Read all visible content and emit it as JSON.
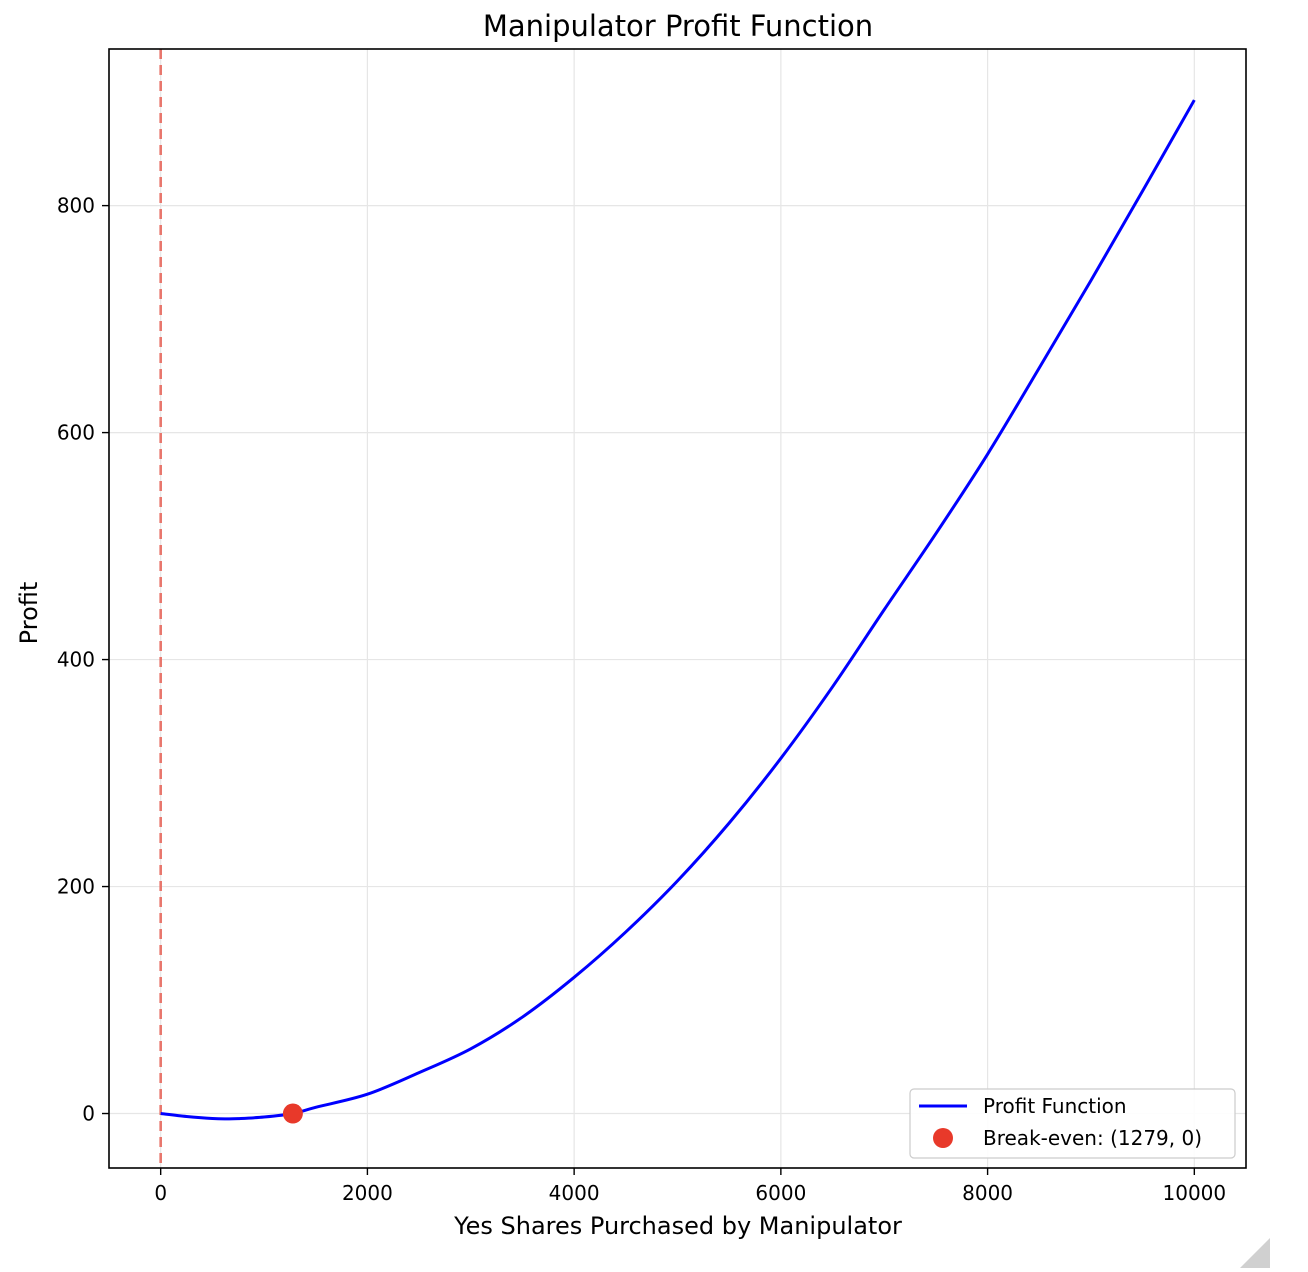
{
  "chart_data": {
    "type": "line",
    "title": "Manipulator Profit Function",
    "xlabel": "Yes Shares Purchased by Manipulator",
    "ylabel": "Profit",
    "xlim": [
      -500,
      10500
    ],
    "ylim": [
      -48,
      938
    ],
    "x_ticks": [
      0,
      2000,
      4000,
      6000,
      8000,
      10000
    ],
    "y_ticks": [
      0,
      200,
      400,
      600,
      800
    ],
    "grid": true,
    "legend_position": "lower-right",
    "colors": {
      "series": "#0000ff",
      "marker": "#e8392a",
      "vline": "#e8766c",
      "grid": "#e6e6e6"
    },
    "series": [
      {
        "name": "Profit Function",
        "x": [
          0,
          250,
          500,
          640,
          750,
          1000,
          1279,
          1500,
          2000,
          2500,
          3000,
          3500,
          4000,
          4500,
          5000,
          5500,
          6000,
          6500,
          7000,
          7500,
          8000,
          8500,
          9000,
          9500,
          10000
        ],
        "y": [
          0,
          -2.6,
          -4.4,
          -4.7,
          -4.5,
          -3.1,
          0,
          5.5,
          17,
          36,
          57,
          85,
          120,
          160,
          205,
          256,
          313,
          376,
          444,
          511,
          581,
          657,
          734,
          813,
          893
        ]
      }
    ],
    "markers": [
      {
        "name": "Break-even: (1279, 0)",
        "x": 1279,
        "y": 0
      }
    ],
    "reference_lines": [
      {
        "orientation": "vertical",
        "x": 0,
        "style": "dashed"
      }
    ]
  }
}
